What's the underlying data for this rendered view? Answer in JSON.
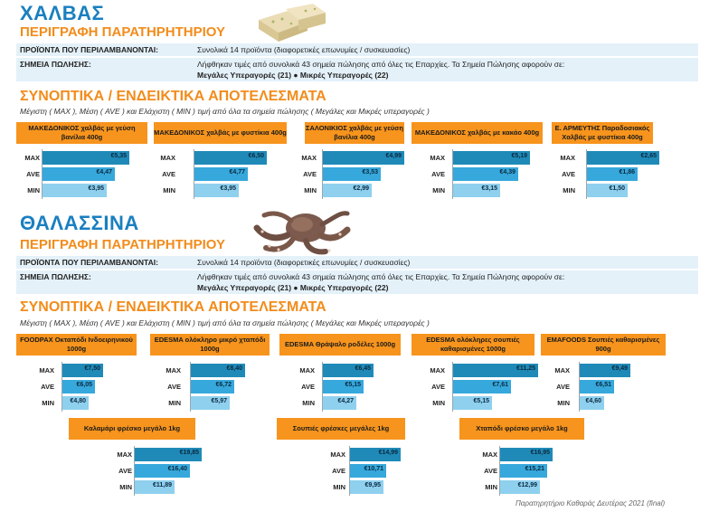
{
  "sections": [
    {
      "title": "ΧΑΛΒΑΣ",
      "description_title": "ΠΕΡΙΓΡΑΦΗ ΠΑΡΑΤΗΡΗΤΗΡΙΟΥ",
      "products_label": "ΠΡΟΪΟΝΤΑ ΠΟΥ ΠΕΡΙΛΑΜΒΑΝΟΝΤΑΙ:",
      "products_value": "Συνολικά 14 προϊόντα (διαφορετικές επωνυμίες / συσκευασίες)",
      "points_label": "ΣΗΜΕΙΑ ΠΩΛΗΣΗΣ:",
      "points_value": "Λήφθηκαν τιμές από συνολικά 43 σημεία πώλησης από όλες τις Επαρχίες. Τα Σημεία Πώλησης αφορούν σε:",
      "points_detail": "Μεγάλες Υπεραγορές (21) ● Μικρές Υπεραγορές (22)",
      "results_title": "ΣΥΝΟΠΤΙΚΑ / ΕΝΔΕΙΚΤΙΚΑ ΑΠΟΤΕΛΕΣΜΑΤΑ",
      "results_note": "Μέγιστη ( MAX ), Μέση ( AVE ) και Ελάχιστη ( MIN ) τιμή από όλα τα σημεία πώλησης ( Μεγάλες και Μικρές υπεραγορές )",
      "icon": "halva-icon"
    },
    {
      "title": "ΘΑΛΑΣΣΙΝΑ",
      "description_title": "ΠΕΡΙΓΡΑΦΗ ΠΑΡΑΤΗΡΗΤΗΡΙΟΥ",
      "products_label": "ΠΡΟΪΟΝΤΑ ΠΟΥ ΠΕΡΙΛΑΜΒΑΝΟΝΤΑΙ:",
      "products_value": "Συνολικά 14 προϊόντα (διαφορετικές επωνυμίες / συσκευασίες)",
      "points_label": "ΣΗΜΕΙΑ ΠΩΛΗΣΗΣ:",
      "points_value": "Λήφθηκαν τιμές από συνολικά 43 σημεία πώλησης από όλες τις Επαρχίες. Τα Σημεία Πώλησης αφορούν σε:",
      "points_detail": "Μεγάλες Υπεραγορές (21) ● Μικρές Υπεραγορές (22)",
      "results_title": "ΣΥΝΟΠΤΙΚΑ / ΕΝΔΕΙΚΤΙΚΑ ΑΠΟΤΕΛΕΣΜΑΤΑ",
      "results_note": "Μέγιστη ( MAX ), Μέση ( AVE ) και Ελάχιστη ( MIN ) τιμή από όλα τα σημεία πώλησης ( Μεγάλες και Μικρές υπεραγορές )",
      "icon": "octopus-icon"
    }
  ],
  "row_labels": [
    "MAX",
    "AVE",
    "MIN"
  ],
  "footer": "Παρατηρητήριο Καθαράς Δευτέρας 2021 (final)",
  "colors": {
    "max": "#1f8ab8",
    "ave": "#36a8dc",
    "min": "#8fd0ef",
    "category": "#f7941d",
    "title": "#1a7fc0",
    "subtitle": "#f28c1c"
  },
  "chart_data": [
    {
      "type": "bar",
      "title": "ΜΑΚΕΔΟΝΙΚΟΣ χαλβάς με γεύση βανίλια 400g",
      "categories": [
        "MAX",
        "AVE",
        "MIN"
      ],
      "values": [
        5.35,
        4.47,
        3.95
      ],
      "labels": [
        "€5,35",
        "€4,47",
        "€3,95"
      ]
    },
    {
      "type": "bar",
      "title": "ΜΑΚΕΔΟΝΙΚΟΣ χαλβάς με φυστίκια 400g",
      "categories": [
        "MAX",
        "AVE",
        "MIN"
      ],
      "values": [
        6.5,
        4.77,
        3.95
      ],
      "labels": [
        "€6,50",
        "€4,77",
        "€3,95"
      ]
    },
    {
      "type": "bar",
      "title": "ΣΑΛΟΝΙΚΙΟΣ χαλβάς με γεύση βανίλια 400g",
      "categories": [
        "MAX",
        "AVE",
        "MIN"
      ],
      "values": [
        4.99,
        3.53,
        2.99
      ],
      "labels": [
        "€4,99",
        "€3,53",
        "€2,99"
      ]
    },
    {
      "type": "bar",
      "title": "ΜΑΚΕΔΟΝΙΚΟΣ χαλβάς με κακάο 400g",
      "categories": [
        "MAX",
        "AVE",
        "MIN"
      ],
      "values": [
        5.19,
        4.39,
        3.15
      ],
      "labels": [
        "€5,19",
        "€4,39",
        "€3,15"
      ]
    },
    {
      "type": "bar",
      "title": "Ε. ΑΡΜΕΥΤΗΣ Παραδοσιακός Χαλβάς με φυστίκια 400g",
      "categories": [
        "MAX",
        "AVE",
        "MIN"
      ],
      "values": [
        2.65,
        1.86,
        1.5
      ],
      "labels": [
        "€2,65",
        "€1,86",
        "€1,50"
      ]
    },
    {
      "type": "bar",
      "title": "FOODPAX Οκταπόδι Ινδοειρηνικού 1000g",
      "categories": [
        "MAX",
        "AVE",
        "MIN"
      ],
      "values": [
        7.5,
        6.05,
        4.8
      ],
      "labels": [
        "€7,50",
        "€6,05",
        "€4,80"
      ]
    },
    {
      "type": "bar",
      "title": "EDESMA ολόκληρο μικρό χταπόδι 1000g",
      "categories": [
        "MAX",
        "AVE",
        "MIN"
      ],
      "values": [
        8.4,
        6.72,
        5.97
      ],
      "labels": [
        "€8,40",
        "€6,72",
        "€5,97"
      ]
    },
    {
      "type": "bar",
      "title": "EDESMA Θράψαλο ροδέλες 1000g",
      "categories": [
        "MAX",
        "AVE",
        "MIN"
      ],
      "values": [
        6.45,
        5.15,
        4.27
      ],
      "labels": [
        "€6,45",
        "€5,15",
        "€4,27"
      ]
    },
    {
      "type": "bar",
      "title": "EDESMA ολόκληρες σουπιές καθαρισμένες 1000g",
      "categories": [
        "MAX",
        "AVE",
        "MIN"
      ],
      "values": [
        11.25,
        7.61,
        5.15
      ],
      "labels": [
        "€11,25",
        "€7,61",
        "€5,15"
      ]
    },
    {
      "type": "bar",
      "title": "EMAFOODS Σουπιές καθαρισμένες 900g",
      "categories": [
        "MAX",
        "AVE",
        "MIN"
      ],
      "values": [
        9.49,
        6.51,
        4.6
      ],
      "labels": [
        "€9,49",
        "€6,51",
        "€4,60"
      ]
    },
    {
      "type": "bar",
      "title": "Καλαμάρι φρέσκο μεγάλο 1kg",
      "categories": [
        "MAX",
        "AVE",
        "MIN"
      ],
      "values": [
        19.85,
        16.4,
        11.89
      ],
      "labels": [
        "€19,85",
        "€16,40",
        "€11,89"
      ]
    },
    {
      "type": "bar",
      "title": "Σουπιές φρέσκες μεγάλες 1kg",
      "categories": [
        "MAX",
        "AVE",
        "MIN"
      ],
      "values": [
        14.99,
        10.71,
        9.95
      ],
      "labels": [
        "€14,99",
        "€10,71",
        "€9,95"
      ]
    },
    {
      "type": "bar",
      "title": "Χταπόδι φρέσκο μεγάλο 1kg",
      "categories": [
        "MAX",
        "AVE",
        "MIN"
      ],
      "values": [
        16.95,
        15.21,
        12.99
      ],
      "labels": [
        "€16,95",
        "€15,21",
        "€12,99"
      ]
    }
  ]
}
